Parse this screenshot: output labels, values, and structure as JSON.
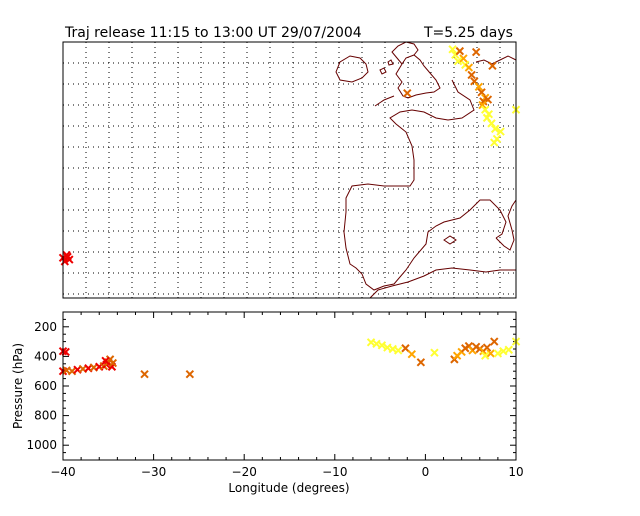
{
  "title": "Traj release 11:15 to 13:00 UT 29/07/2004",
  "duration_label": "T=5.25 days",
  "colors": {
    "early": "#ffff33",
    "mid": "#ffa500",
    "late": "#dd6600",
    "final": "#ee0000",
    "coast": "#660000",
    "axis": "#000000"
  },
  "chart_data": [
    {
      "type": "scatter",
      "name": "trajectory-map",
      "xlim": [
        -40,
        10
      ],
      "ylim": [
        30,
        58
      ],
      "grid": true,
      "points": [
        {
          "x": -40.0,
          "y": 34.4,
          "c": "final"
        },
        {
          "x": -39.6,
          "y": 34.7,
          "c": "final"
        },
        {
          "x": -39.3,
          "y": 34.2,
          "c": "final"
        },
        {
          "x": -39.8,
          "y": 34.0,
          "c": "final"
        },
        {
          "x": -39.5,
          "y": 34.5,
          "c": "final"
        },
        {
          "x": 3.0,
          "y": 57.2,
          "c": "early"
        },
        {
          "x": 3.3,
          "y": 56.6,
          "c": "early"
        },
        {
          "x": 3.8,
          "y": 57.0,
          "c": "late"
        },
        {
          "x": 4.2,
          "y": 56.2,
          "c": "mid"
        },
        {
          "x": 4.4,
          "y": 55.5,
          "c": "early"
        },
        {
          "x": 5.6,
          "y": 56.9,
          "c": "late"
        },
        {
          "x": 3.6,
          "y": 55.9,
          "c": "early"
        },
        {
          "x": 4.8,
          "y": 55.2,
          "c": "mid"
        },
        {
          "x": 5.1,
          "y": 54.4,
          "c": "late"
        },
        {
          "x": 5.4,
          "y": 53.7,
          "c": "late"
        },
        {
          "x": 5.9,
          "y": 53.1,
          "c": "mid"
        },
        {
          "x": 6.2,
          "y": 52.5,
          "c": "late"
        },
        {
          "x": 6.6,
          "y": 51.9,
          "c": "mid"
        },
        {
          "x": 6.4,
          "y": 51.5,
          "c": "late"
        },
        {
          "x": 6.9,
          "y": 51.7,
          "c": "late"
        },
        {
          "x": 6.3,
          "y": 51.1,
          "c": "mid"
        },
        {
          "x": 6.6,
          "y": 50.6,
          "c": "early"
        },
        {
          "x": 7.0,
          "y": 50.1,
          "c": "early"
        },
        {
          "x": 6.8,
          "y": 49.7,
          "c": "early"
        },
        {
          "x": 7.3,
          "y": 49.1,
          "c": "early"
        },
        {
          "x": 7.7,
          "y": 48.5,
          "c": "early"
        },
        {
          "x": 8.3,
          "y": 48.2,
          "c": "early"
        },
        {
          "x": 7.9,
          "y": 47.4,
          "c": "early"
        },
        {
          "x": 7.6,
          "y": 47.0,
          "c": "early"
        },
        {
          "x": 10.0,
          "y": 50.6,
          "c": "early"
        },
        {
          "x": 7.4,
          "y": 55.4,
          "c": "late"
        },
        {
          "x": -2.0,
          "y": 52.4,
          "c": "late"
        }
      ]
    },
    {
      "type": "scatter",
      "name": "pressure-longitude",
      "xlabel": "Longitude  (degrees)",
      "ylabel": "Pressure  (hPa)",
      "xlim": [
        -40,
        10
      ],
      "ylim": [
        100,
        1100
      ],
      "yreverse": true,
      "xticks": [
        -40,
        -30,
        -20,
        -10,
        0,
        10
      ],
      "xtick_labels": [
        "−40",
        "−30",
        "−20",
        "−10",
        "0",
        "10"
      ],
      "yticks": [
        200,
        400,
        600,
        800,
        1000
      ],
      "ytick_labels": [
        "200",
        "400",
        "600",
        "800",
        "1000"
      ],
      "points": [
        {
          "x": -40.0,
          "y": 365,
          "c": "final"
        },
        {
          "x": -39.7,
          "y": 370,
          "c": "final"
        },
        {
          "x": -40.0,
          "y": 500,
          "c": "final"
        },
        {
          "x": -39.6,
          "y": 495,
          "c": "late"
        },
        {
          "x": -39.0,
          "y": 500,
          "c": "late"
        },
        {
          "x": -38.4,
          "y": 490,
          "c": "final"
        },
        {
          "x": -37.8,
          "y": 485,
          "c": "late"
        },
        {
          "x": -37.2,
          "y": 480,
          "c": "final"
        },
        {
          "x": -36.6,
          "y": 475,
          "c": "late"
        },
        {
          "x": -36.0,
          "y": 470,
          "c": "final"
        },
        {
          "x": -35.5,
          "y": 465,
          "c": "late"
        },
        {
          "x": -35.2,
          "y": 455,
          "c": "final"
        },
        {
          "x": -35.0,
          "y": 440,
          "c": "late"
        },
        {
          "x": -34.8,
          "y": 420,
          "c": "late"
        },
        {
          "x": -34.6,
          "y": 470,
          "c": "final"
        },
        {
          "x": -34.5,
          "y": 445,
          "c": "late"
        },
        {
          "x": -35.3,
          "y": 430,
          "c": "final"
        },
        {
          "x": -31.0,
          "y": 520,
          "c": "late"
        },
        {
          "x": -26.0,
          "y": 520,
          "c": "late"
        },
        {
          "x": -6.0,
          "y": 305,
          "c": "early"
        },
        {
          "x": -5.4,
          "y": 315,
          "c": "early"
        },
        {
          "x": -4.8,
          "y": 325,
          "c": "early"
        },
        {
          "x": -4.2,
          "y": 340,
          "c": "early"
        },
        {
          "x": -3.6,
          "y": 350,
          "c": "early"
        },
        {
          "x": -3.0,
          "y": 360,
          "c": "early"
        },
        {
          "x": -2.2,
          "y": 345,
          "c": "late"
        },
        {
          "x": -1.5,
          "y": 385,
          "c": "mid"
        },
        {
          "x": -0.5,
          "y": 440,
          "c": "late"
        },
        {
          "x": 1.0,
          "y": 375,
          "c": "early"
        },
        {
          "x": 3.2,
          "y": 420,
          "c": "late"
        },
        {
          "x": 3.5,
          "y": 395,
          "c": "mid"
        },
        {
          "x": 4.0,
          "y": 370,
          "c": "mid"
        },
        {
          "x": 4.4,
          "y": 345,
          "c": "late"
        },
        {
          "x": 4.8,
          "y": 330,
          "c": "late"
        },
        {
          "x": 5.2,
          "y": 360,
          "c": "mid"
        },
        {
          "x": 5.6,
          "y": 335,
          "c": "late"
        },
        {
          "x": 6.0,
          "y": 350,
          "c": "late"
        },
        {
          "x": 6.4,
          "y": 365,
          "c": "mid"
        },
        {
          "x": 6.8,
          "y": 340,
          "c": "late"
        },
        {
          "x": 7.2,
          "y": 380,
          "c": "mid"
        },
        {
          "x": 6.6,
          "y": 395,
          "c": "early"
        },
        {
          "x": 7.6,
          "y": 300,
          "c": "late"
        },
        {
          "x": 8.0,
          "y": 380,
          "c": "early"
        },
        {
          "x": 8.6,
          "y": 365,
          "c": "early"
        },
        {
          "x": 9.2,
          "y": 355,
          "c": "early"
        },
        {
          "x": 10.0,
          "y": 300,
          "c": "early"
        }
      ]
    }
  ]
}
